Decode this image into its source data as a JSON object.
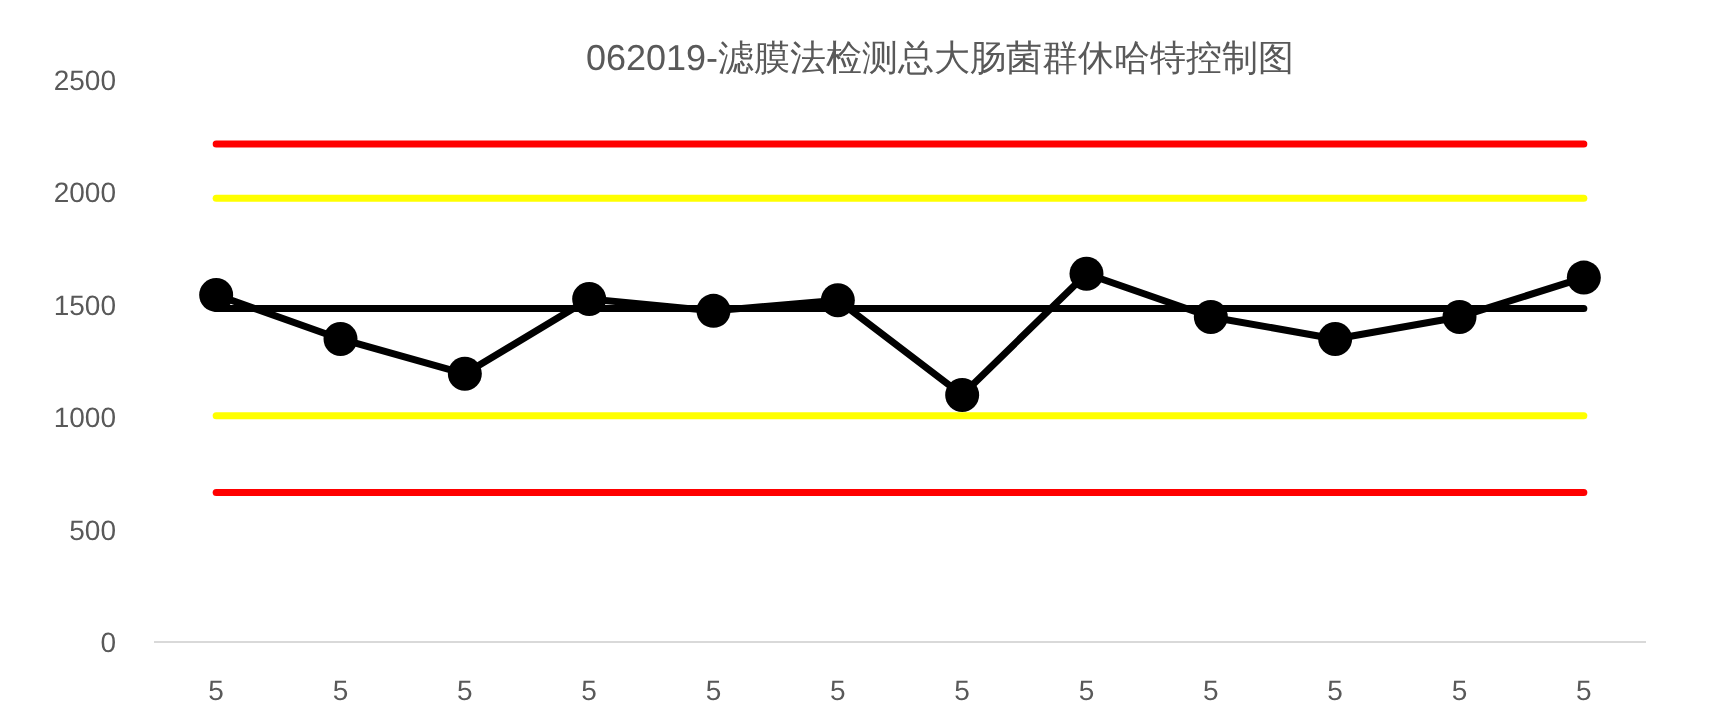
{
  "chart_data": {
    "type": "line",
    "title": "062019-滤膜法检测总大肠菌群休哈特控制图",
    "categories": [
      "5",
      "5",
      "5",
      "5",
      "5",
      "5",
      "5",
      "5",
      "5",
      "5",
      "5",
      "5"
    ],
    "series": [
      {
        "color": "#000000",
        "values": [
          1544,
          1348,
          1193,
          1526,
          1473,
          1520,
          1099,
          1638,
          1446,
          1348,
          1446,
          1621
        ]
      }
    ],
    "marker": "circle",
    "line_style": "solid",
    "ylim": [
      0,
      2500
    ],
    "yticks": [
      0,
      500,
      1000,
      1500,
      2000,
      2500
    ],
    "ref_lines": [
      {
        "axis": "y",
        "value": 2215,
        "color": "#ff0000"
      },
      {
        "axis": "y",
        "value": 1974,
        "color": "#ffff00"
      },
      {
        "axis": "y",
        "value": 1484,
        "color": "#000000"
      },
      {
        "axis": "y",
        "value": 1006,
        "color": "#ffff00"
      },
      {
        "axis": "y",
        "value": 665,
        "color": "#ff0000"
      }
    ]
  }
}
